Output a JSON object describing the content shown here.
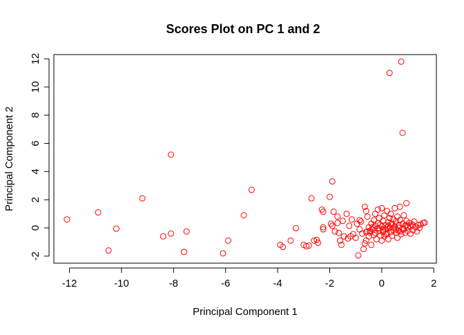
{
  "chart_data": {
    "type": "scatter",
    "title": "Scores Plot on PC 1 and 2",
    "xlabel": "Principal Component 1",
    "ylabel": "Principal Component 2",
    "xlim": [
      -12.6,
      2.1
    ],
    "ylim": [
      -2.5,
      12.3
    ],
    "xticks": [
      -12,
      -10,
      -8,
      -6,
      -4,
      -2,
      0,
      2
    ],
    "yticks": [
      -2,
      0,
      2,
      4,
      6,
      8,
      10,
      12
    ],
    "grid": false,
    "legend": "none",
    "marker": "open-circle",
    "color": "#ff0000",
    "series": [
      {
        "points": [
          [
            -12.1,
            0.6
          ],
          [
            -10.9,
            1.1
          ],
          [
            -10.5,
            -1.6
          ],
          [
            -10.2,
            -0.05
          ],
          [
            -9.2,
            2.1
          ],
          [
            -8.4,
            -0.6
          ],
          [
            -8.1,
            5.2
          ],
          [
            -8.1,
            -0.4
          ],
          [
            -7.6,
            -1.7
          ],
          [
            -7.5,
            -0.25
          ],
          [
            -6.1,
            -1.8
          ],
          [
            -5.9,
            -0.9
          ],
          [
            -5.3,
            0.9
          ],
          [
            -5.0,
            2.7
          ],
          [
            -3.9,
            -1.2
          ],
          [
            -3.8,
            -1.35
          ],
          [
            -3.5,
            -0.9
          ],
          [
            -3.3,
            -0.02
          ],
          [
            -3.0,
            -1.2
          ],
          [
            -2.9,
            -1.3
          ],
          [
            -2.8,
            -1.25
          ],
          [
            -2.7,
            2.1
          ],
          [
            -2.6,
            -0.9
          ],
          [
            -2.5,
            -0.85
          ],
          [
            -2.45,
            -1.05
          ],
          [
            -2.3,
            1.3
          ],
          [
            -2.25,
            1.15
          ],
          [
            -2.25,
            0.05
          ],
          [
            -2.25,
            -0.1
          ],
          [
            -2.0,
            2.2
          ],
          [
            -1.9,
            3.3
          ],
          [
            -1.95,
            0.3
          ],
          [
            -1.9,
            0.15
          ],
          [
            -1.85,
            1.15
          ],
          [
            -1.8,
            -0.25
          ],
          [
            -1.7,
            0.8
          ],
          [
            -1.7,
            0.35
          ],
          [
            -1.65,
            -0.35
          ],
          [
            -1.6,
            -0.9
          ],
          [
            -1.55,
            -1.2
          ],
          [
            -1.5,
            0.5
          ],
          [
            -1.45,
            -0.6
          ],
          [
            -1.35,
            1.0
          ],
          [
            -1.3,
            -0.75
          ],
          [
            -1.25,
            0.15
          ],
          [
            -1.2,
            -0.6
          ],
          [
            -1.15,
            0.6
          ],
          [
            -1.1,
            -0.45
          ],
          [
            -1.0,
            -0.7
          ],
          [
            -0.95,
            0.3
          ],
          [
            -0.9,
            -1.95
          ],
          [
            -0.85,
            -0.1
          ],
          [
            -0.8,
            0.45
          ],
          [
            -0.75,
            -0.4
          ],
          [
            -0.7,
            -1.5
          ],
          [
            -0.65,
            1.5
          ],
          [
            -0.65,
            -1.1
          ],
          [
            -0.6,
            1.2
          ],
          [
            -0.6,
            -0.9
          ],
          [
            -0.55,
            0.8
          ],
          [
            -0.55,
            -0.25
          ],
          [
            -0.5,
            -0.6
          ],
          [
            -0.5,
            0.05
          ],
          [
            -0.45,
            -0.35
          ],
          [
            -0.4,
            -1.2
          ],
          [
            -0.4,
            0.3
          ],
          [
            -0.35,
            -0.1
          ],
          [
            -0.3,
            0.55
          ],
          [
            -0.3,
            -0.5
          ],
          [
            -0.25,
            0.15
          ],
          [
            -0.25,
            1.0
          ],
          [
            -0.2,
            -0.8
          ],
          [
            -0.15,
            0.35
          ],
          [
            -0.15,
            1.3
          ],
          [
            -0.1,
            -0.2
          ],
          [
            -0.1,
            0.7
          ],
          [
            -0.05,
            -0.55
          ],
          [
            0.0,
            1.4
          ],
          [
            0.0,
            0.1
          ],
          [
            0.0,
            -0.9
          ],
          [
            0.05,
            0.5
          ],
          [
            0.05,
            -0.3
          ],
          [
            0.1,
            0.9
          ],
          [
            0.1,
            -0.6
          ],
          [
            0.15,
            0.2
          ],
          [
            0.15,
            -0.1
          ],
          [
            0.2,
            1.2
          ],
          [
            0.2,
            -0.4
          ],
          [
            0.25,
            0.4
          ],
          [
            0.25,
            -0.8
          ],
          [
            0.3,
            11.0
          ],
          [
            0.3,
            0.7
          ],
          [
            0.3,
            0.0
          ],
          [
            0.35,
            -0.3
          ],
          [
            0.35,
            1.0
          ],
          [
            0.4,
            0.3
          ],
          [
            0.4,
            -0.55
          ],
          [
            0.45,
            0.6
          ],
          [
            0.45,
            -0.15
          ],
          [
            0.5,
            1.4
          ],
          [
            0.5,
            0.1
          ],
          [
            0.55,
            -0.35
          ],
          [
            0.55,
            0.45
          ],
          [
            0.6,
            -0.7
          ],
          [
            0.6,
            0.8
          ],
          [
            0.65,
            0.2
          ],
          [
            0.65,
            -0.2
          ],
          [
            0.7,
            0.55
          ],
          [
            0.7,
            1.5
          ],
          [
            0.75,
            11.8
          ],
          [
            0.75,
            -0.45
          ],
          [
            0.8,
            6.75
          ],
          [
            0.8,
            0.3
          ],
          [
            0.85,
            -0.1
          ],
          [
            0.85,
            0.9
          ],
          [
            0.9,
            0.15
          ],
          [
            0.9,
            -0.35
          ],
          [
            0.95,
            1.75
          ],
          [
            0.95,
            0.5
          ],
          [
            1.0,
            -0.2
          ],
          [
            1.0,
            0.05
          ],
          [
            1.05,
            0.35
          ],
          [
            1.1,
            -0.4
          ],
          [
            1.1,
            0.1
          ],
          [
            1.15,
            0.25
          ],
          [
            1.2,
            -0.15
          ],
          [
            1.25,
            0.45
          ],
          [
            1.3,
            0.05
          ],
          [
            1.35,
            -0.25
          ],
          [
            1.4,
            0.2
          ],
          [
            1.45,
            0.0
          ],
          [
            1.5,
            0.25
          ],
          [
            1.6,
            0.35
          ],
          [
            1.65,
            0.38
          ],
          [
            -0.15,
            -0.05
          ],
          [
            0.2,
            0.05
          ],
          [
            0.45,
            0.0
          ],
          [
            -0.35,
            0.05
          ],
          [
            0.65,
            0.0
          ],
          [
            -0.45,
            -0.2
          ],
          [
            0.15,
            -0.45
          ],
          [
            0.35,
            0.25
          ],
          [
            -0.05,
            0.25
          ],
          [
            0.55,
            -0.1
          ],
          [
            -0.25,
            -0.35
          ],
          [
            0.8,
            -0.05
          ],
          [
            0.95,
            0.2
          ],
          [
            0.05,
            -0.15
          ],
          [
            -0.1,
            0.0
          ],
          [
            0.25,
            0.15
          ],
          [
            -0.6,
            -0.3
          ],
          [
            1.2,
            0.2
          ],
          [
            0.7,
            -0.25
          ],
          [
            -0.85,
            0.55
          ]
        ]
      }
    ]
  }
}
